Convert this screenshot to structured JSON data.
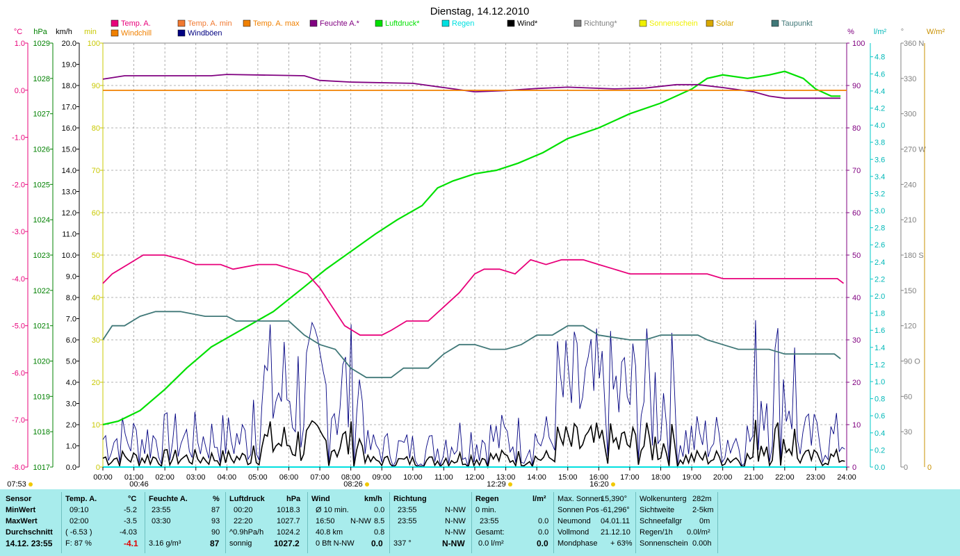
{
  "title": "Dienstag, 14.12.2010",
  "colors": {
    "temp": "#e8007a",
    "temp_min": "#f07830",
    "temp_max": "#f08000",
    "humidity": "#800080",
    "pressure": "#00e000",
    "rain": "#00e0e0",
    "wind": "#000000",
    "direction": "#808080",
    "sunshine": "#f0f000",
    "solar": "#d8a800",
    "dewpoint": "#407878",
    "windchill": "#f08000",
    "gusts": "#000080",
    "panel_bg": "#a8ecec"
  },
  "legend": [
    {
      "label": "Temp. A.",
      "color": "#e8007a"
    },
    {
      "label": "Temp. A. min",
      "color": "#f07830"
    },
    {
      "label": "Temp. A. max",
      "color": "#f08000"
    },
    {
      "label": "Feuchte A.*",
      "color": "#800080"
    },
    {
      "label": "Luftdruck*",
      "color": "#00e000"
    },
    {
      "label": "Regen",
      "color": "#00e0e0"
    },
    {
      "label": "Wind*",
      "color": "#000000"
    },
    {
      "label": "Richtung*",
      "color": "#808080"
    },
    {
      "label": "Sonnenschein",
      "color": "#f0f000"
    },
    {
      "label": "Solar",
      "color": "#d8a800"
    },
    {
      "label": "Taupunkt",
      "color": "#407878"
    },
    {
      "label": "Windchill",
      "color": "#f08000"
    },
    {
      "label": "Windböen",
      "color": "#000080"
    }
  ],
  "axis_headers": {
    "temp": "°C",
    "pressure": "hPa",
    "wind": "km/h",
    "min": "min",
    "humidity": "%",
    "rain": "l/m²",
    "direction": "°",
    "solar": "W/m²"
  },
  "chart_data": {
    "type": "line",
    "title": "Dienstag, 14.12.2010",
    "x_unit": "hours",
    "x_ticks": [
      "00:00",
      "01:00",
      "02:00",
      "03:00",
      "04:00",
      "05:00",
      "06:00",
      "07:00",
      "08:00",
      "09:00",
      "10:00",
      "11:00",
      "12:00",
      "13:00",
      "14:00",
      "15:00",
      "16:00",
      "17:00",
      "18:00",
      "19:00",
      "20:00",
      "21:00",
      "22:00",
      "23:00",
      "24:00"
    ],
    "axes": {
      "temp": {
        "range": [
          -8,
          1
        ],
        "ticks": [
          "1.0",
          "0.0",
          "-1.0",
          "-2.0",
          "-3.0",
          "-4.0",
          "-5.0",
          "-6.0",
          "-7.0",
          "-8.0"
        ]
      },
      "pressure": {
        "range": [
          1017,
          1029
        ],
        "ticks": [
          "1029",
          "1028",
          "1027",
          "1026",
          "1025",
          "1024",
          "1023",
          "1022",
          "1021",
          "1020",
          "1019",
          "1018",
          "1017"
        ]
      },
      "wind": {
        "range": [
          0,
          20
        ],
        "ticks": [
          "20.0",
          "19.0",
          "18.0",
          "17.0",
          "16.0",
          "15.0",
          "14.0",
          "13.0",
          "12.0",
          "11.0",
          "10.0",
          "9.0",
          "8.0",
          "7.0",
          "6.0",
          "5.0",
          "4.0",
          "3.0",
          "2.0",
          "1.0",
          "0.0"
        ]
      },
      "minutes": {
        "range": [
          0,
          100
        ],
        "ticks": [
          "100",
          "90",
          "80",
          "70",
          "60",
          "50",
          "40",
          "30",
          "20",
          "10",
          "0"
        ]
      },
      "humidity": {
        "range": [
          0,
          100
        ],
        "ticks": [
          "100",
          "90",
          "80",
          "70",
          "60",
          "50",
          "40",
          "30",
          "20",
          "10",
          "0"
        ]
      },
      "rain": {
        "range": [
          0,
          5
        ],
        "ticks": [
          "4.8",
          "4.6",
          "4.4",
          "4.2",
          "4.0",
          "3.8",
          "3.6",
          "3.4",
          "3.2",
          "3.0",
          "2.8",
          "2.6",
          "2.4",
          "2.2",
          "2.0",
          "1.8",
          "1.6",
          "1.4",
          "1.2",
          "1.0",
          "0.8",
          "0.6",
          "0.4",
          "0.2",
          "0.0"
        ]
      },
      "direction": {
        "range": [
          0,
          360
        ],
        "ticks": [
          "360 N",
          "330",
          "300",
          "270 W",
          "240",
          "210",
          "180 S",
          "150",
          "120",
          "90 O",
          "60",
          "30",
          "0"
        ]
      },
      "solar": {
        "range": [
          0,
          360
        ],
        "ticks": [
          "0"
        ]
      }
    },
    "series": [
      {
        "name": "Luftdruck*",
        "axis": "pressure",
        "color": "#00e000",
        "points": [
          [
            0,
            1018.2
          ],
          [
            0.5,
            1018.3
          ],
          [
            1.2,
            1018.6
          ],
          [
            2,
            1019.2
          ],
          [
            2.7,
            1019.8
          ],
          [
            3.5,
            1020.4
          ],
          [
            4.5,
            1020.9
          ],
          [
            5.5,
            1021.4
          ],
          [
            6.5,
            1022.1
          ],
          [
            7.2,
            1022.6
          ],
          [
            8,
            1023.1
          ],
          [
            8.8,
            1023.6
          ],
          [
            9.5,
            1024.0
          ],
          [
            10.3,
            1024.4
          ],
          [
            10.8,
            1024.9
          ],
          [
            11.3,
            1025.1
          ],
          [
            12,
            1025.3
          ],
          [
            12.7,
            1025.4
          ],
          [
            13.4,
            1025.6
          ],
          [
            14.2,
            1025.9
          ],
          [
            15,
            1026.3
          ],
          [
            16,
            1026.6
          ],
          [
            17,
            1027.0
          ],
          [
            18,
            1027.3
          ],
          [
            19,
            1027.7
          ],
          [
            19.5,
            1028.0
          ],
          [
            20,
            1028.1
          ],
          [
            20.8,
            1028.0
          ],
          [
            21.5,
            1028.1
          ],
          [
            22,
            1028.2
          ],
          [
            22.6,
            1028.0
          ],
          [
            23,
            1027.7
          ],
          [
            23.5,
            1027.5
          ],
          [
            23.8,
            1027.5
          ]
        ]
      },
      {
        "name": "Feuchte A.*",
        "axis": "humidity",
        "color": "#800080",
        "points": [
          [
            0,
            91.5
          ],
          [
            0.7,
            92.3
          ],
          [
            2,
            92.3
          ],
          [
            3.5,
            92.3
          ],
          [
            4,
            92.6
          ],
          [
            6.5,
            92.3
          ],
          [
            7,
            91.2
          ],
          [
            8,
            90.8
          ],
          [
            10,
            90.5
          ],
          [
            11,
            89.5
          ],
          [
            12,
            88.5
          ],
          [
            13,
            88.8
          ],
          [
            14,
            89.3
          ],
          [
            15,
            89.6
          ],
          [
            16.5,
            89.2
          ],
          [
            17.5,
            89.4
          ],
          [
            18.5,
            90.2
          ],
          [
            19.2,
            90.2
          ],
          [
            20,
            89.5
          ],
          [
            21,
            88.5
          ],
          [
            21.5,
            87.5
          ],
          [
            22,
            87
          ],
          [
            23,
            87
          ],
          [
            23.8,
            87
          ]
        ]
      },
      {
        "name": "Temp. A.",
        "axis": "temp",
        "color": "#e8007a",
        "points": [
          [
            0,
            -4.1
          ],
          [
            0.3,
            -3.9
          ],
          [
            0.8,
            -3.7
          ],
          [
            1.3,
            -3.5
          ],
          [
            2,
            -3.5
          ],
          [
            2.6,
            -3.6
          ],
          [
            3,
            -3.7
          ],
          [
            3.8,
            -3.7
          ],
          [
            4.2,
            -3.8
          ],
          [
            5,
            -3.7
          ],
          [
            5.6,
            -3.7
          ],
          [
            6.1,
            -3.8
          ],
          [
            6.6,
            -3.9
          ],
          [
            7,
            -4.2
          ],
          [
            7.4,
            -4.6
          ],
          [
            7.8,
            -5.0
          ],
          [
            8.3,
            -5.2
          ],
          [
            9,
            -5.2
          ],
          [
            9.3,
            -5.1
          ],
          [
            9.8,
            -4.9
          ],
          [
            10.5,
            -4.9
          ],
          [
            11,
            -4.6
          ],
          [
            11.5,
            -4.3
          ],
          [
            12,
            -3.9
          ],
          [
            12.3,
            -3.8
          ],
          [
            12.8,
            -3.8
          ],
          [
            13.3,
            -3.9
          ],
          [
            13.8,
            -3.6
          ],
          [
            14.3,
            -3.7
          ],
          [
            14.8,
            -3.6
          ],
          [
            15.5,
            -3.6
          ],
          [
            16,
            -3.7
          ],
          [
            16.5,
            -3.8
          ],
          [
            17,
            -3.9
          ],
          [
            19.5,
            -3.9
          ],
          [
            20,
            -4.0
          ],
          [
            21,
            -4.0
          ],
          [
            22,
            -4.0
          ],
          [
            23,
            -4.0
          ],
          [
            23.7,
            -4.0
          ],
          [
            23.9,
            -4.1
          ]
        ]
      },
      {
        "name": "Taupunkt",
        "axis": "temp",
        "color": "#407878",
        "points": [
          [
            0,
            -5.3
          ],
          [
            0.3,
            -5.0
          ],
          [
            0.7,
            -5.0
          ],
          [
            1.2,
            -4.8
          ],
          [
            1.7,
            -4.7
          ],
          [
            2.5,
            -4.7
          ],
          [
            3.3,
            -4.8
          ],
          [
            4,
            -4.8
          ],
          [
            4.3,
            -4.9
          ],
          [
            5.5,
            -4.9
          ],
          [
            6,
            -4.9
          ],
          [
            6.5,
            -5.2
          ],
          [
            7,
            -5.4
          ],
          [
            7.5,
            -5.5
          ],
          [
            8,
            -5.9
          ],
          [
            8.5,
            -6.1
          ],
          [
            9.3,
            -6.1
          ],
          [
            9.7,
            -5.9
          ],
          [
            10.5,
            -5.9
          ],
          [
            11,
            -5.6
          ],
          [
            11.5,
            -5.4
          ],
          [
            12,
            -5.4
          ],
          [
            12.5,
            -5.5
          ],
          [
            13,
            -5.5
          ],
          [
            13.5,
            -5.4
          ],
          [
            14,
            -5.2
          ],
          [
            14.5,
            -5.2
          ],
          [
            15,
            -5.0
          ],
          [
            15.5,
            -5.0
          ],
          [
            16,
            -5.2
          ],
          [
            17,
            -5.3
          ],
          [
            17.5,
            -5.3
          ],
          [
            18,
            -5.2
          ],
          [
            19.2,
            -5.2
          ],
          [
            19.5,
            -5.3
          ],
          [
            20,
            -5.4
          ],
          [
            20.5,
            -5.5
          ],
          [
            21.5,
            -5.5
          ],
          [
            22,
            -5.6
          ],
          [
            23,
            -5.6
          ],
          [
            23.6,
            -5.6
          ],
          [
            23.8,
            -5.7
          ]
        ]
      },
      {
        "name": "Temp. A. max",
        "axis": "temp",
        "color": "#f08000",
        "points": [
          [
            0,
            0.0
          ],
          [
            24,
            0.0
          ]
        ]
      }
    ]
  },
  "axis_labels": {
    "sun_times": [
      "07:53",
      "08:26",
      "12:29",
      "16:20"
    ],
    "other_times": [
      "00:46"
    ]
  },
  "table": {
    "rows": [
      "Sensor",
      "MinWert",
      "MaxWert",
      "Durchschnitt",
      "14.12. 23:55"
    ],
    "temp": {
      "header": "Temp. A.",
      "unit": "°C",
      "min_t": "09:10",
      "min_v": "-5.2",
      "max_t": "02:00",
      "max_v": "-3.5",
      "avg_a": "( -6.53 )",
      "avg_v": "-4.03",
      "cur_a": "F: 87 %",
      "cur_v": "-4.1"
    },
    "hum": {
      "header": "Feuchte A.",
      "unit": "%",
      "min_t": "23:55",
      "min_v": "87",
      "max_t": "03:30",
      "max_v": "93",
      "avg_v": "90",
      "cur_a": "3.16 g/m³",
      "cur_v": "87"
    },
    "press": {
      "header": "Luftdruck",
      "unit": "hPa",
      "min_t": "00:20",
      "min_v": "1018.3",
      "max_t": "22:20",
      "max_v": "1027.7",
      "avg_a": "^0.9hPa/h",
      "avg_v": "1024.2",
      "cur_a": "sonnig",
      "cur_v": "1027.2"
    },
    "wind": {
      "header": "Wind",
      "unit": "km/h",
      "min_t": "Ø 10 min.",
      "min_v": "0.0",
      "max_t": "16:50",
      "max_d": "N-NW",
      "max_v": "8.5",
      "avg_a": "40.8 km",
      "avg_v": "0.8",
      "cur_a": "0 Bft N-NW",
      "cur_v": "0.0"
    },
    "dir": {
      "header": "Richtung",
      "min_t": "23:55",
      "min_v": "N-NW",
      "max_t": "23:55",
      "max_v": "N-NW",
      "avg_v": "N-NW",
      "cur_a": "337 °",
      "cur_v": "N-NW"
    },
    "rain": {
      "header": "Regen",
      "unit": "l/m²",
      "min_t": "0 min.",
      "max_t": "23:55",
      "max_v": "0.0",
      "avg_a": "Gesamt:",
      "avg_v": "0.0",
      "cur_a": "0.0 l/m²",
      "cur_v": "0.0"
    },
    "astro": [
      [
        "Max. Sonnen",
        "15,390°"
      ],
      [
        "Sonnen Pos",
        "-61,296°"
      ],
      [
        "Neumond",
        "04.01.11"
      ],
      [
        "Vollmond",
        "21.12.10"
      ],
      [
        "Mondphase",
        "+ 63%"
      ]
    ],
    "misc": [
      [
        "Wolkenunterg",
        "282m"
      ],
      [
        "Sichtweite",
        "2-5km"
      ],
      [
        "Schneefallgr",
        "0m"
      ],
      [
        "Regen/1h",
        "0.0l/m²"
      ],
      [
        "Sonnenschein",
        "0.00h"
      ]
    ]
  }
}
